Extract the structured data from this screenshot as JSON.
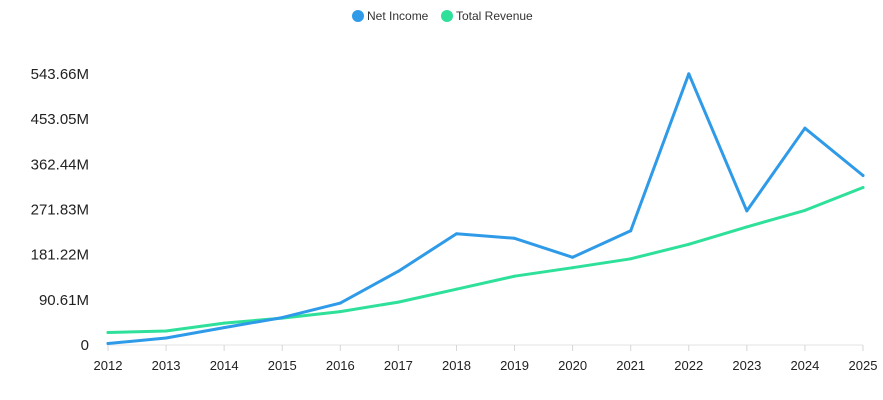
{
  "chart_data": {
    "type": "line",
    "title": "",
    "xlabel": "",
    "ylabel": "",
    "x": [
      "2012",
      "2013",
      "2014",
      "2015",
      "2016",
      "2017",
      "2018",
      "2019",
      "2020",
      "2021",
      "2022",
      "2023",
      "2024",
      "2025"
    ],
    "y_ticks": [
      "0",
      "90.61M",
      "181.22M",
      "271.83M",
      "362.44M",
      "453.05M",
      "543.66M"
    ],
    "ylim": [
      0,
      543.66
    ],
    "grid": false,
    "legend_position": "top-center",
    "series": [
      {
        "name": "Net Income",
        "color": "#2f9be8",
        "values": [
          3,
          14,
          35,
          55,
          84,
          148,
          223,
          214,
          176,
          229,
          544,
          269,
          435,
          340
        ]
      },
      {
        "name": "Total Revenue",
        "color": "#2ee09a",
        "values": [
          25,
          28,
          44,
          54,
          67,
          86,
          112,
          138,
          155,
          173,
          202,
          237,
          270,
          316
        ]
      }
    ]
  }
}
